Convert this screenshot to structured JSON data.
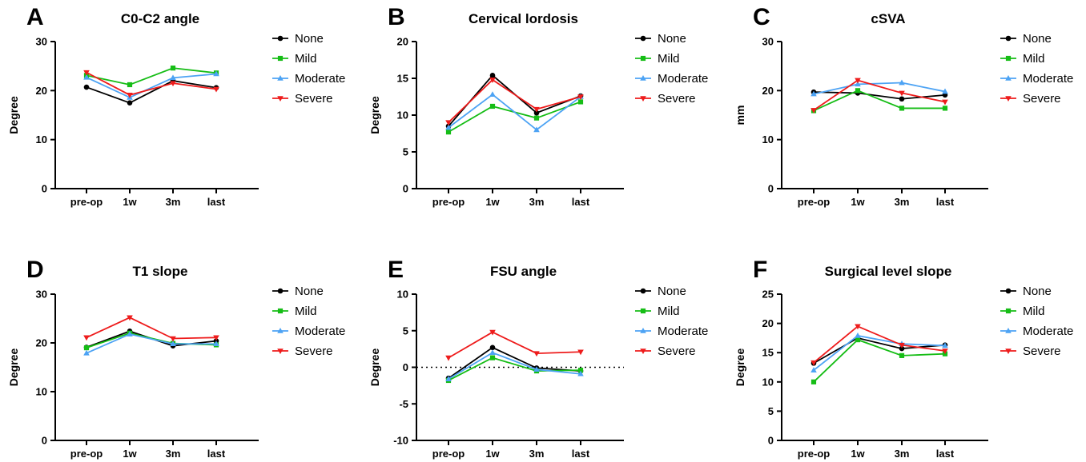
{
  "figure": {
    "panels": [
      {
        "letter": "A",
        "chart_data": {
          "type": "line",
          "title": "C0-C2 angle",
          "xlabel": "",
          "ylabel": "Degree",
          "categories": [
            "pre-op",
            "1w",
            "3m",
            "last"
          ],
          "ylim": [
            0,
            30
          ],
          "yticks": [
            0,
            10,
            20,
            30
          ],
          "zero_line": false,
          "grid": false,
          "legend": "right",
          "series": [
            {
              "name": "None",
              "values": [
                20.7,
                17.5,
                22.0,
                20.6
              ]
            },
            {
              "name": "Mild",
              "values": [
                23.1,
                21.2,
                24.6,
                23.6
              ]
            },
            {
              "name": "Moderate",
              "values": [
                22.7,
                18.6,
                22.6,
                23.4
              ]
            },
            {
              "name": "Severe",
              "values": [
                23.7,
                19.1,
                21.5,
                20.3
              ]
            }
          ]
        }
      },
      {
        "letter": "B",
        "chart_data": {
          "type": "line",
          "title": "Cervical lordosis",
          "xlabel": "",
          "ylabel": "Degree",
          "categories": [
            "pre-op",
            "1w",
            "3m",
            "last"
          ],
          "ylim": [
            0,
            20
          ],
          "yticks": [
            0,
            5,
            10,
            15,
            20
          ],
          "zero_line": false,
          "grid": false,
          "legend": "right",
          "series": [
            {
              "name": "None",
              "values": [
                8.5,
                15.4,
                10.3,
                12.6
              ]
            },
            {
              "name": "Mild",
              "values": [
                7.7,
                11.2,
                9.6,
                11.8
              ]
            },
            {
              "name": "Moderate",
              "values": [
                8.3,
                12.8,
                8.0,
                12.5
              ]
            },
            {
              "name": "Severe",
              "values": [
                9.0,
                14.8,
                10.8,
                12.5
              ]
            }
          ]
        }
      },
      {
        "letter": "C",
        "chart_data": {
          "type": "line",
          "title": "cSVA",
          "xlabel": "",
          "ylabel": "mm",
          "categories": [
            "pre-op",
            "1w",
            "3m",
            "last"
          ],
          "ylim": [
            0,
            30
          ],
          "yticks": [
            0,
            10,
            20,
            30
          ],
          "zero_line": false,
          "grid": false,
          "legend": "right",
          "series": [
            {
              "name": "None",
              "values": [
                19.7,
                19.5,
                18.3,
                19.1
              ]
            },
            {
              "name": "Mild",
              "values": [
                15.9,
                20.0,
                16.4,
                16.4
              ]
            },
            {
              "name": "Moderate",
              "values": [
                19.3,
                21.3,
                21.6,
                19.8
              ]
            },
            {
              "name": "Severe",
              "values": [
                16.0,
                22.1,
                19.5,
                17.7
              ]
            }
          ]
        }
      },
      {
        "letter": "D",
        "chart_data": {
          "type": "line",
          "title": "T1 slope",
          "xlabel": "",
          "ylabel": "Degree",
          "categories": [
            "pre-op",
            "1w",
            "3m",
            "last"
          ],
          "ylim": [
            0,
            30
          ],
          "yticks": [
            0,
            10,
            20,
            30
          ],
          "zero_line": false,
          "grid": false,
          "legend": "right",
          "series": [
            {
              "name": "None",
              "values": [
                19.1,
                22.4,
                19.4,
                20.4
              ]
            },
            {
              "name": "Mild",
              "values": [
                19.0,
                22.0,
                19.9,
                19.6
              ]
            },
            {
              "name": "Moderate",
              "values": [
                17.9,
                21.8,
                19.8,
                19.8
              ]
            },
            {
              "name": "Severe",
              "values": [
                21.1,
                25.2,
                20.9,
                21.1
              ]
            }
          ]
        }
      },
      {
        "letter": "E",
        "chart_data": {
          "type": "line",
          "title": "FSU angle",
          "xlabel": "",
          "ylabel": "Degree",
          "categories": [
            "pre-op",
            "1w",
            "3m",
            "last"
          ],
          "ylim": [
            -10,
            10
          ],
          "yticks": [
            -10,
            -5,
            0,
            5,
            10
          ],
          "zero_line": true,
          "grid": false,
          "legend": "right",
          "series": [
            {
              "name": "None",
              "values": [
                -1.5,
                2.7,
                -0.1,
                -0.5
              ]
            },
            {
              "name": "Mild",
              "values": [
                -1.8,
                1.3,
                -0.5,
                -0.4
              ]
            },
            {
              "name": "Moderate",
              "values": [
                -1.6,
                2.0,
                -0.3,
                -0.9
              ]
            },
            {
              "name": "Severe",
              "values": [
                1.3,
                4.8,
                1.9,
                2.1
              ]
            }
          ]
        }
      },
      {
        "letter": "F",
        "chart_data": {
          "type": "line",
          "title": "Surgical level slope",
          "xlabel": "",
          "ylabel": "Degree",
          "categories": [
            "pre-op",
            "1w",
            "3m",
            "last"
          ],
          "ylim": [
            0,
            25
          ],
          "yticks": [
            0,
            5,
            10,
            15,
            20,
            25
          ],
          "zero_line": false,
          "grid": false,
          "legend": "right",
          "series": [
            {
              "name": "None",
              "values": [
                13.2,
                17.5,
                15.7,
                16.3
              ]
            },
            {
              "name": "Mild",
              "values": [
                10.0,
                17.2,
                14.5,
                14.8
              ]
            },
            {
              "name": "Moderate",
              "values": [
                12.0,
                17.9,
                16.5,
                16.2
              ]
            },
            {
              "name": "Severe",
              "values": [
                13.3,
                19.5,
                16.3,
                15.3
              ]
            }
          ]
        }
      }
    ],
    "series_styles": [
      {
        "name": "None",
        "color": "#000000",
        "marker": "circle"
      },
      {
        "name": "Mild",
        "color": "#16bd16",
        "marker": "square"
      },
      {
        "name": "Moderate",
        "color": "#4da3f4",
        "marker": "triangle-up"
      },
      {
        "name": "Severe",
        "color": "#ee1c1c",
        "marker": "triangle-down"
      }
    ]
  }
}
